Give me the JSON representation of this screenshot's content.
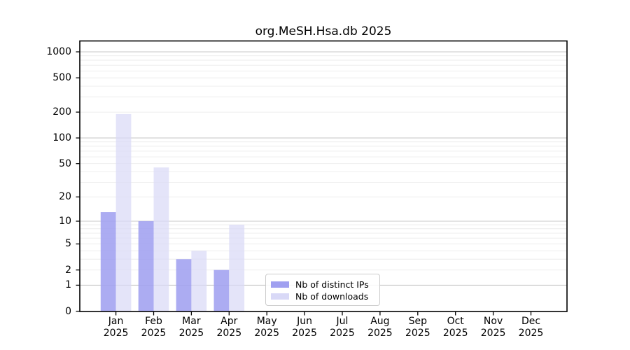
{
  "chart_data": {
    "type": "bar",
    "title": "org.MeSH.Hsa.db 2025",
    "x_tick_months": [
      "Jan",
      "Feb",
      "Mar",
      "Apr",
      "May",
      "Jun",
      "Jul",
      "Aug",
      "Sep",
      "Oct",
      "Nov",
      "Dec"
    ],
    "x_tick_year": "2025",
    "y_ticks": [
      0,
      1,
      2,
      5,
      10,
      20,
      50,
      100,
      200,
      500,
      1000
    ],
    "y_scale": "log10(1+y)",
    "ylim": [
      0,
      1325
    ],
    "grid": "horizontal, light gray minors at 2-9 per decade, darker lines at 1/10/100/1000",
    "legend_position": "inside lower-center",
    "series": [
      {
        "name": "Nb of distinct IPs",
        "color": "#a0a0f0",
        "values": [
          13,
          10,
          3,
          2,
          0,
          0,
          0,
          0,
          0,
          0,
          0,
          0
        ]
      },
      {
        "name": "Nb of downloads",
        "color": "#d9d9f7",
        "values": [
          190,
          45,
          4,
          9,
          0,
          0,
          0,
          0,
          0,
          0,
          0,
          0
        ]
      }
    ],
    "colors": {
      "major_grid": "#c9c9c9",
      "minor_grid": "#ebebeb",
      "spine": "#000000"
    }
  }
}
